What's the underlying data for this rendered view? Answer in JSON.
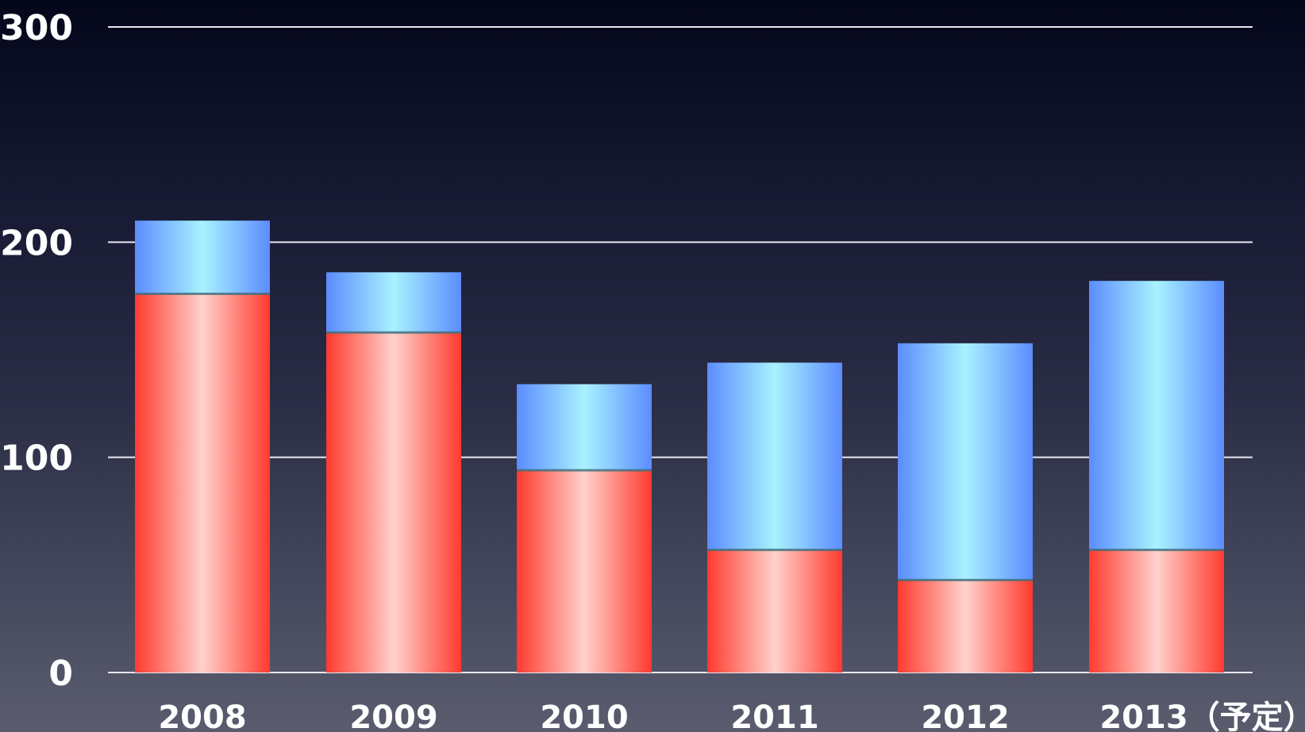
{
  "chart_data": {
    "type": "bar",
    "stacked": true,
    "categories": [
      "2008",
      "2009",
      "2010",
      "2011",
      "2012",
      "2013（予定）"
    ],
    "series": [
      {
        "color": "#ff3a2e",
        "values": [
          176,
          158,
          94,
          57,
          43,
          57
        ]
      },
      {
        "color": "#78bfff",
        "values": [
          34,
          28,
          40,
          87,
          110,
          125
        ]
      }
    ],
    "yticks": [
      "0",
      "100",
      "200",
      "300"
    ],
    "ylim": [
      0,
      300
    ],
    "grid": true,
    "title": "",
    "xlabel": "",
    "ylabel": ""
  }
}
